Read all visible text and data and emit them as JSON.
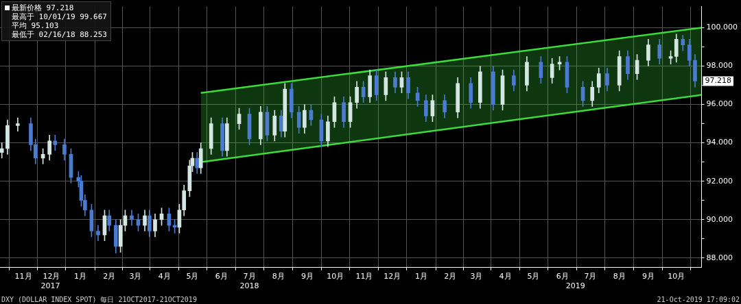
{
  "chart_data": {
    "type": "candlestick",
    "xlim": [
      "2017-10-07",
      "2019-10-28"
    ],
    "xticks": [
      {
        "value": "2017-11-01",
        "label": "11月"
      },
      {
        "value": "2017-12-01",
        "label": "12月"
      },
      {
        "value": "2018-01-01",
        "label": "1月"
      },
      {
        "value": "2018-02-01",
        "label": "2月"
      },
      {
        "value": "2018-03-01",
        "label": "3月"
      },
      {
        "value": "2018-04-01",
        "label": "4月"
      },
      {
        "value": "2018-05-01",
        "label": "5月"
      },
      {
        "value": "2018-06-01",
        "label": "6月"
      },
      {
        "value": "2018-07-01",
        "label": "7月"
      },
      {
        "value": "2018-08-01",
        "label": "8月"
      },
      {
        "value": "2018-09-01",
        "label": "9月"
      },
      {
        "value": "2018-10-01",
        "label": "10月"
      },
      {
        "value": "2018-11-01",
        "label": "11月"
      },
      {
        "value": "2018-12-01",
        "label": "12月"
      },
      {
        "value": "2019-01-01",
        "label": "1月"
      },
      {
        "value": "2019-02-01",
        "label": "2月"
      },
      {
        "value": "2019-03-01",
        "label": "3月"
      },
      {
        "value": "2019-04-01",
        "label": "4月"
      },
      {
        "value": "2019-05-01",
        "label": "5月"
      },
      {
        "value": "2019-06-01",
        "label": "6月"
      },
      {
        "value": "2019-07-01",
        "label": "7月"
      },
      {
        "value": "2019-08-01",
        "label": "8月"
      },
      {
        "value": "2019-09-01",
        "label": "9月"
      },
      {
        "value": "2019-10-01",
        "label": "10月"
      }
    ],
    "x2lim": [
      "2017-10-07",
      "2019-10-28"
    ],
    "x2ticks": [
      {
        "value": "2017-11-30",
        "label": "2017"
      },
      {
        "value": "2018-07-01",
        "label": "2018"
      },
      {
        "value": "2019-06-15",
        "label": "2019"
      }
    ],
    "ylim": [
      87.5,
      101.1
    ],
    "yticks": [
      {
        "value": 88,
        "label": "88.000"
      },
      {
        "value": 89,
        "label": null
      },
      {
        "value": 90,
        "label": "90.000"
      },
      {
        "value": 91,
        "label": null
      },
      {
        "value": 92,
        "label": "92.000"
      },
      {
        "value": 93,
        "label": null
      },
      {
        "value": 94,
        "label": "94.000"
      },
      {
        "value": 95,
        "label": null
      },
      {
        "value": 96,
        "label": "96.000"
      },
      {
        "value": 97,
        "label": null
      },
      {
        "value": 98,
        "label": "98.000"
      },
      {
        "value": 99,
        "label": null
      },
      {
        "value": 100,
        "label": "100.000"
      }
    ],
    "grid": true,
    "legend": false,
    "series": [
      {
        "type": "line",
        "color": "#3ddc3d",
        "x": [
          "2018-05-10",
          "2019-10-28"
        ],
        "values": [
          96.6,
          100.0
        ],
        "lower": [
          93.0,
          96.5
        ],
        "upper": [
          96.6,
          100.0
        ]
      },
      {
        "type": "line",
        "color": "#3ddc3d",
        "x": [
          "2018-05-10",
          "2019-10-28"
        ],
        "values": [
          93.0,
          96.5
        ]
      },
      {
        "color": "#d4e6e2",
        "x": [
          "2017-10-09",
          "2017-10-15",
          "2017-10-26",
          "2017-11-22",
          "2017-11-29",
          "2018-01-27",
          "2018-02-13",
          "2018-02-18",
          "2018-03-11",
          "2018-03-22",
          "2018-03-29",
          "2018-04-17",
          "2018-04-22",
          "2018-04-28",
          "2018-05-01",
          "2018-05-10",
          "2018-05-21",
          "2018-06-07",
          "2018-06-20",
          "2018-07-13",
          "2018-07-28",
          "2018-08-08",
          "2018-08-29",
          "2018-09-23",
          "2018-09-30",
          "2018-10-17",
          "2018-10-24",
          "2018-11-07",
          "2018-11-24",
          "2018-12-11",
          "2019-01-13",
          "2019-02-09",
          "2019-03-05",
          "2019-03-29",
          "2019-04-24",
          "2019-05-21",
          "2019-05-29",
          "2019-07-03",
          "2019-07-10",
          "2019-08-01",
          "2019-08-20",
          "2019-09-01",
          "2019-09-25",
          "2019-10-01"
        ],
        "ohlc": [
          [
            93.5,
            94.0,
            93.2,
            93.7
          ],
          [
            93.7,
            95.2,
            93.4,
            94.9
          ],
          [
            94.9,
            95.3,
            94.6,
            95.0
          ],
          [
            93.2,
            93.7,
            92.9,
            93.4
          ],
          [
            93.4,
            94.4,
            93.1,
            94.1
          ],
          [
            89.2,
            90.5,
            88.9,
            90.2
          ],
          [
            88.6,
            90.0,
            88.3,
            89.7
          ],
          [
            89.7,
            90.5,
            89.4,
            90.2
          ],
          [
            89.7,
            90.5,
            89.4,
            90.2
          ],
          [
            89.4,
            90.3,
            89.1,
            90.0
          ],
          [
            90.0,
            90.6,
            89.7,
            90.3
          ],
          [
            89.6,
            90.8,
            89.3,
            90.5
          ],
          [
            90.5,
            91.8,
            90.2,
            91.5
          ],
          [
            91.5,
            93.1,
            91.2,
            92.8
          ],
          [
            92.8,
            93.5,
            92.5,
            93.2
          ],
          [
            92.7,
            94.0,
            92.4,
            93.7
          ],
          [
            93.7,
            95.3,
            93.4,
            95.0
          ],
          [
            93.6,
            95.3,
            93.3,
            95.0
          ],
          [
            95.0,
            95.8,
            94.7,
            95.5
          ],
          [
            94.2,
            95.9,
            93.9,
            95.6
          ],
          [
            94.4,
            95.7,
            94.1,
            95.4
          ],
          [
            94.6,
            97.1,
            94.3,
            96.8
          ],
          [
            94.8,
            96.0,
            94.5,
            95.7
          ],
          [
            94.1,
            95.4,
            93.8,
            95.1
          ],
          [
            95.1,
            96.4,
            94.8,
            96.1
          ],
          [
            95.1,
            96.4,
            94.8,
            96.1
          ],
          [
            96.1,
            97.2,
            95.8,
            96.9
          ],
          [
            96.4,
            97.8,
            96.1,
            97.5
          ],
          [
            96.5,
            97.7,
            96.2,
            97.4
          ],
          [
            96.9,
            97.7,
            96.6,
            97.4
          ],
          [
            95.4,
            96.5,
            95.1,
            96.2
          ],
          [
            95.6,
            97.4,
            95.3,
            97.1
          ],
          [
            96.1,
            98.0,
            95.8,
            97.7
          ],
          [
            96.0,
            97.8,
            95.7,
            97.5
          ],
          [
            97.0,
            98.5,
            96.7,
            98.2
          ],
          [
            97.4,
            98.4,
            97.1,
            98.1
          ],
          [
            98.1,
            98.5,
            97.8,
            98.2
          ],
          [
            96.2,
            97.2,
            95.9,
            96.9
          ],
          [
            96.9,
            97.9,
            96.6,
            97.6
          ],
          [
            97.0,
            98.8,
            96.7,
            98.5
          ],
          [
            97.6,
            98.6,
            97.3,
            98.3
          ],
          [
            98.3,
            99.4,
            98.0,
            99.1
          ],
          [
            98.4,
            98.8,
            98.1,
            98.5
          ],
          [
            98.5,
            99.667,
            98.2,
            99.4
          ]
        ]
      },
      {
        "color": "#4a7bd0",
        "x": [
          "2017-11-09",
          "2017-11-14",
          "2017-12-05",
          "2017-12-15",
          "2017-12-22",
          "2017-12-30",
          "2018-01-02",
          "2018-01-06",
          "2018-01-13",
          "2018-01-20",
          "2018-02-01",
          "2018-02-08",
          "2018-02-25",
          "2018-03-04",
          "2018-03-16",
          "2018-04-06",
          "2018-04-12",
          "2018-05-06",
          "2018-06-02",
          "2018-07-01",
          "2018-07-20",
          "2018-08-04",
          "2018-08-15",
          "2018-08-23",
          "2018-09-05",
          "2018-09-16",
          "2018-10-10",
          "2018-10-31",
          "2018-11-14",
          "2018-12-04",
          "2018-12-18",
          "2018-12-28",
          "2019-01-06",
          "2019-01-26",
          "2019-02-23",
          "2019-03-19",
          "2019-04-10",
          "2019-05-09",
          "2019-06-06",
          "2019-06-23",
          "2019-07-19",
          "2019-08-10",
          "2019-09-13",
          "2019-10-08",
          "2019-10-15",
          "2019-10-21"
        ],
        "ohlc": [
          [
            95.0,
            95.3,
            93.6,
            93.9
          ],
          [
            93.9,
            94.2,
            92.9,
            93.2
          ],
          [
            94.1,
            94.4,
            93.6,
            93.9
          ],
          [
            93.9,
            94.2,
            93.1,
            93.4
          ],
          [
            93.4,
            93.7,
            91.9,
            92.2
          ],
          [
            92.2,
            92.5,
            91.7,
            92.0
          ],
          [
            92.0,
            92.3,
            90.7,
            91.0
          ],
          [
            91.0,
            91.3,
            90.2,
            90.5
          ],
          [
            90.5,
            90.8,
            89.1,
            89.4
          ],
          [
            89.4,
            89.7,
            88.9,
            89.2
          ],
          [
            90.2,
            90.5,
            89.4,
            89.7
          ],
          [
            89.7,
            90.0,
            88.253,
            88.6
          ],
          [
            90.2,
            90.5,
            89.7,
            90.0
          ],
          [
            90.0,
            90.3,
            89.4,
            89.7
          ],
          [
            90.2,
            90.5,
            89.1,
            89.4
          ],
          [
            90.3,
            90.6,
            89.4,
            89.7
          ],
          [
            89.7,
            90.0,
            89.3,
            89.6
          ],
          [
            93.2,
            93.5,
            92.4,
            92.7
          ],
          [
            95.0,
            95.3,
            93.3,
            93.6
          ],
          [
            95.5,
            95.8,
            93.9,
            94.2
          ],
          [
            95.6,
            95.9,
            94.1,
            94.4
          ],
          [
            95.4,
            95.7,
            94.3,
            94.6
          ],
          [
            96.8,
            97.1,
            95.3,
            95.6
          ],
          [
            95.6,
            95.9,
            94.5,
            94.8
          ],
          [
            95.7,
            96.0,
            94.9,
            95.2
          ],
          [
            95.2,
            95.5,
            93.8,
            94.1
          ],
          [
            96.1,
            96.4,
            94.8,
            95.1
          ],
          [
            96.9,
            97.2,
            96.1,
            96.4
          ],
          [
            97.5,
            97.8,
            96.2,
            96.5
          ],
          [
            97.4,
            97.7,
            96.6,
            96.9
          ],
          [
            97.4,
            97.7,
            96.3,
            96.6
          ],
          [
            96.6,
            96.9,
            95.9,
            96.2
          ],
          [
            96.2,
            96.5,
            95.1,
            95.4
          ],
          [
            96.2,
            96.5,
            95.3,
            95.6
          ],
          [
            97.1,
            97.4,
            95.8,
            96.1
          ],
          [
            97.7,
            98.0,
            95.7,
            96.0
          ],
          [
            97.5,
            97.8,
            96.7,
            97.0
          ],
          [
            98.2,
            98.5,
            97.1,
            97.4
          ],
          [
            98.2,
            98.5,
            96.6,
            96.9
          ],
          [
            96.9,
            97.2,
            95.9,
            96.2
          ],
          [
            97.6,
            97.9,
            96.7,
            97.0
          ],
          [
            98.5,
            98.8,
            97.3,
            97.6
          ],
          [
            99.1,
            99.4,
            98.1,
            98.4
          ],
          [
            99.4,
            99.6,
            98.8,
            99.1
          ],
          [
            99.1,
            99.4,
            98.0,
            98.3
          ],
          [
            98.3,
            98.6,
            96.9,
            97.218
          ]
        ]
      }
    ],
    "annotations": [
      "最新价格 97.218",
      "最高于 10/01/19 99.667",
      "平均 95.103",
      "最低于 02/16/18 88.253",
      {
        "text": "97.218",
        "x": "2019-10-21",
        "y": 97.218
      },
      "DXY (DOLLAR INDEX SPOT) 每日 21OCT2017-21OCT2019",
      "21-Oct-2019 17:09:02"
    ]
  }
}
